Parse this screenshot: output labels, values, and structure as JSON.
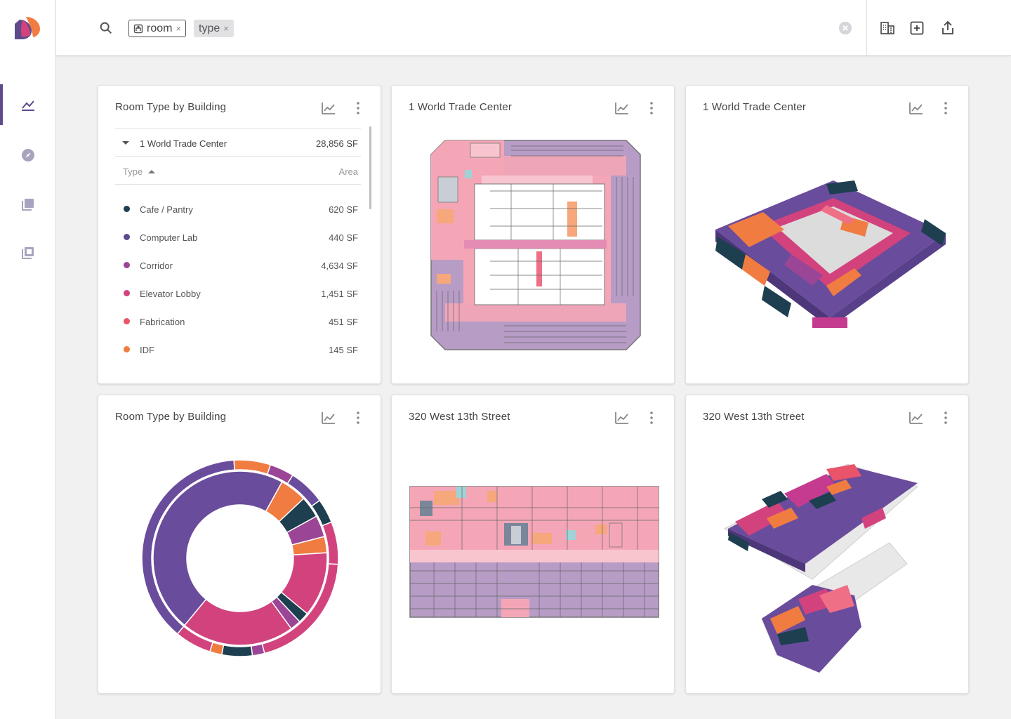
{
  "search": {
    "chips": [
      {
        "label": "room",
        "remove": "×"
      },
      {
        "label": "type",
        "remove": "×"
      }
    ]
  },
  "nav": {
    "items": [
      {
        "icon": "line-chart-icon",
        "active": true
      },
      {
        "icon": "compass-icon",
        "active": false
      },
      {
        "icon": "layers-icon",
        "active": false
      },
      {
        "icon": "library-icon",
        "active": false
      }
    ]
  },
  "toolbar": {
    "icons": [
      "building-icon",
      "add-box-icon",
      "share-icon"
    ]
  },
  "cards": [
    {
      "title": "Room Type by Building",
      "type": "table",
      "group": {
        "name": "1 World Trade Center",
        "area": "28,856 SF"
      },
      "columns": {
        "type": "Type",
        "area": "Area"
      },
      "rows": [
        {
          "name": "Cafe / Pantry",
          "area": "620 SF",
          "color": "#1d3f4f"
        },
        {
          "name": "Computer Lab",
          "area": "440 SF",
          "color": "#5e4b8c"
        },
        {
          "name": "Corridor",
          "area": "4,634 SF",
          "color": "#9b4596"
        },
        {
          "name": "Elevator Lobby",
          "area": "1,451 SF",
          "color": "#d2437e"
        },
        {
          "name": "Fabrication",
          "area": "451 SF",
          "color": "#e9546a"
        },
        {
          "name": "IDF",
          "area": "145 SF",
          "color": "#f07c42"
        }
      ]
    },
    {
      "title": "1 World Trade Center",
      "type": "floorplan-2d"
    },
    {
      "title": "1 World Trade Center",
      "type": "floorplan-3d"
    },
    {
      "title": "Room Type by Building",
      "type": "sunburst"
    },
    {
      "title": "320 West 13th Street",
      "type": "floorplan-2d"
    },
    {
      "title": "320 West 13th Street",
      "type": "floorplan-3d"
    }
  ],
  "colors": {
    "accent": "#5f4b8b",
    "purple": "#6a4c9c",
    "magenta": "#d2437e",
    "pink": "#f4a6b6",
    "orange": "#f07c42",
    "teal": "#1d3f4f",
    "lavender": "#b79cc6"
  },
  "chart_data": {
    "type": "sunburst",
    "rings": [
      {
        "level": "inner",
        "slices": [
          {
            "category": "Computer Lab",
            "share": 0.47,
            "color": "#6a4c9c"
          },
          {
            "category": "IDF",
            "share": 0.05,
            "color": "#f07c42"
          },
          {
            "category": "Cafe / Pantry",
            "share": 0.04,
            "color": "#1d3f4f"
          },
          {
            "category": "Corridor",
            "share": 0.04,
            "color": "#9b4596"
          },
          {
            "category": "IDF",
            "share": 0.03,
            "color": "#f07c42"
          },
          {
            "category": "Elevator Lobby",
            "share": 0.12,
            "color": "#d2437e"
          },
          {
            "category": "Cafe / Pantry",
            "share": 0.02,
            "color": "#1d3f4f"
          },
          {
            "category": "Corridor",
            "share": 0.02,
            "color": "#9b4596"
          },
          {
            "category": "Elevator Lobby",
            "share": 0.21,
            "color": "#d2437e"
          }
        ]
      },
      {
        "level": "outer",
        "slices": [
          {
            "category": "Computer Lab",
            "share": 0.38,
            "color": "#6a4c9c"
          },
          {
            "category": "IDF",
            "share": 0.06,
            "color": "#f07c42"
          },
          {
            "category": "Corridor",
            "share": 0.04,
            "color": "#9b4596"
          },
          {
            "category": "Computer Lab",
            "share": 0.06,
            "color": "#6a4c9c"
          },
          {
            "category": "Cafe / Pantry",
            "share": 0.04,
            "color": "#1d3f4f"
          },
          {
            "category": "Elevator Lobby",
            "share": 0.07,
            "color": "#d2437e"
          },
          {
            "category": "Elevator Lobby",
            "share": 0.2,
            "color": "#d2437e"
          },
          {
            "category": "Corridor",
            "share": 0.02,
            "color": "#9b4596"
          },
          {
            "category": "Cafe / Pantry",
            "share": 0.05,
            "color": "#1d3f4f"
          },
          {
            "category": "IDF",
            "share": 0.02,
            "color": "#f07c42"
          },
          {
            "category": "Elevator Lobby",
            "share": 0.06,
            "color": "#d2437e"
          }
        ]
      }
    ]
  }
}
